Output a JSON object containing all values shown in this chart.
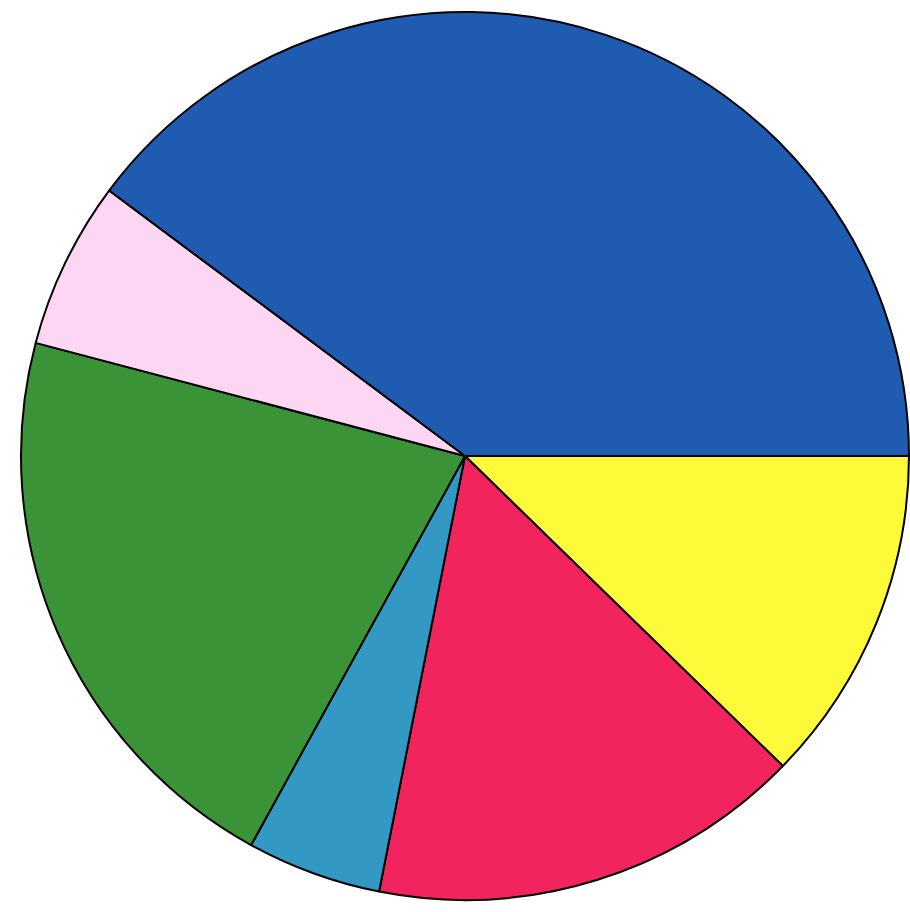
{
  "chart_data": {
    "type": "pie",
    "categories": [
      null,
      null,
      null,
      null,
      null,
      null
    ],
    "values": [
      12.3,
      15.8,
      4.9,
      21.1,
      6.1,
      39.8
    ],
    "colors": [
      "#fdfa3a",
      "#f2245e",
      "#3399c4",
      "#3a9437",
      "#fcd6f2",
      "#1f5bb0"
    ]
  }
}
